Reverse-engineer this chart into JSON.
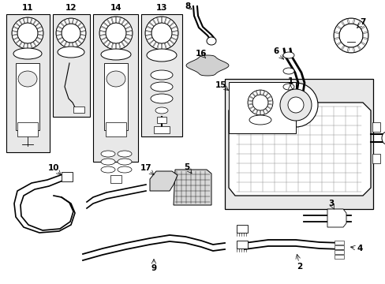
{
  "bg_color": "#ffffff",
  "line_color": "#000000",
  "gray_fill": "#d8d8d8",
  "light_gray": "#e8e8e8",
  "figsize": [
    4.89,
    3.6
  ],
  "dpi": 100
}
